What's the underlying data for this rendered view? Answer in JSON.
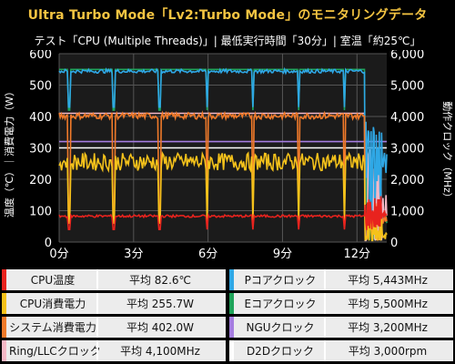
{
  "title": "Ultra Turbo Mode「Lv2:Turbo Mode」のモニタリングデータ",
  "subtitle": "テスト「CPU (Multiple Threads)」| 最低実行時間「30分」| 室温「約25℃」",
  "chart_data": {
    "type": "line",
    "title": "Ultra Turbo Mode「Lv2:Turbo Mode」のモニタリングデータ",
    "ylabel_left": "温度（℃）｜消費電力（W）",
    "ylabel_right": "動作クロック（MHz）",
    "x_ticks": [
      "0分",
      "3分",
      "6分",
      "9分",
      "12分"
    ],
    "x_tick_values": [
      0,
      3,
      6,
      9,
      12
    ],
    "xlim": [
      0,
      13.2
    ],
    "ylim_left": [
      0,
      600
    ],
    "yticks_left": [
      "0",
      "100",
      "200",
      "300",
      "400",
      "500",
      "600"
    ],
    "ylim_right": [
      0,
      6000
    ],
    "yticks_right": [
      "0",
      "1,000",
      "2,000",
      "3,000",
      "4,000",
      "5,000",
      "6,000"
    ],
    "grid": true,
    "dips_minutes": [
      0.4,
      2.2,
      4.05,
      5.95,
      7.8,
      9.65,
      11.5
    ],
    "series": [
      {
        "name": "CPU温度",
        "color": "#e8231e",
        "axis": "left",
        "level": 82.6,
        "avg": "平均 82.6℃"
      },
      {
        "name": "CPU消費電力",
        "color": "#f5c21b",
        "axis": "left",
        "level": 255.7,
        "avg": "平均 255.7W"
      },
      {
        "name": "システム消費電力",
        "color": "#f07a2a",
        "axis": "left",
        "level": 402.0,
        "avg": "平均 402.0W"
      },
      {
        "name": "Ring/LLCクロック",
        "color": "#f4b8c6",
        "axis": "right",
        "level": 4100,
        "avg": "平均 4,100MHz"
      },
      {
        "name": "Pコアクロック",
        "color": "#2fa8e6",
        "axis": "right",
        "level": 5443,
        "avg": "平均 5,443MHz"
      },
      {
        "name": "Eコアクロック",
        "color": "#1fa35a",
        "axis": "right",
        "level": 5500,
        "avg": "平均 5,500MHz"
      },
      {
        "name": "NGUクロック",
        "color": "#a57de0",
        "axis": "right",
        "level": 3200,
        "avg": "平均 3,200MHz"
      },
      {
        "name": "D2Dクロック",
        "color": "#ffffff",
        "axis": "right",
        "level": 3000,
        "avg": "平均 3,000rpm"
      }
    ]
  }
}
